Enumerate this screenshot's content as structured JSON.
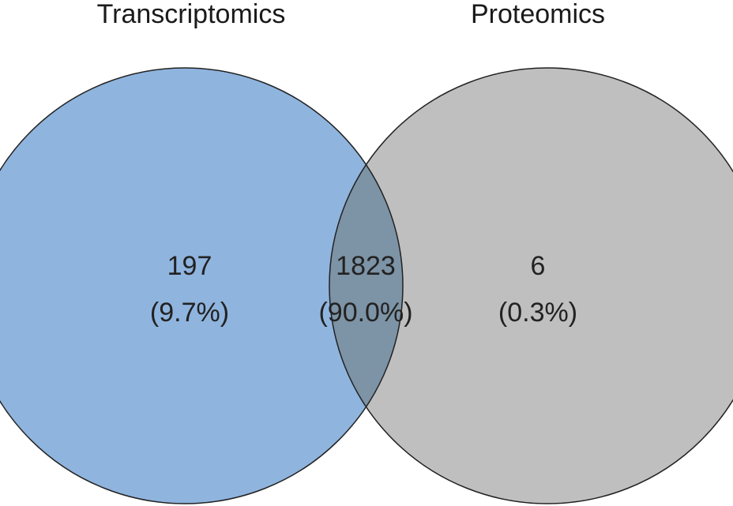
{
  "sets": [
    {
      "label": "Transcriptomics",
      "color": "#8fb4de"
    },
    {
      "label": "Proteomics",
      "color": "#bfbfbf"
    }
  ],
  "overlap_color": "#7d93a6",
  "outline_color": "#222222",
  "regions": {
    "left_only": {
      "count": "197",
      "percent": "(9.7%)"
    },
    "both": {
      "count": "1823",
      "percent": "(90.0%)"
    },
    "right_only": {
      "count": "6",
      "percent": "(0.3%)"
    }
  }
}
